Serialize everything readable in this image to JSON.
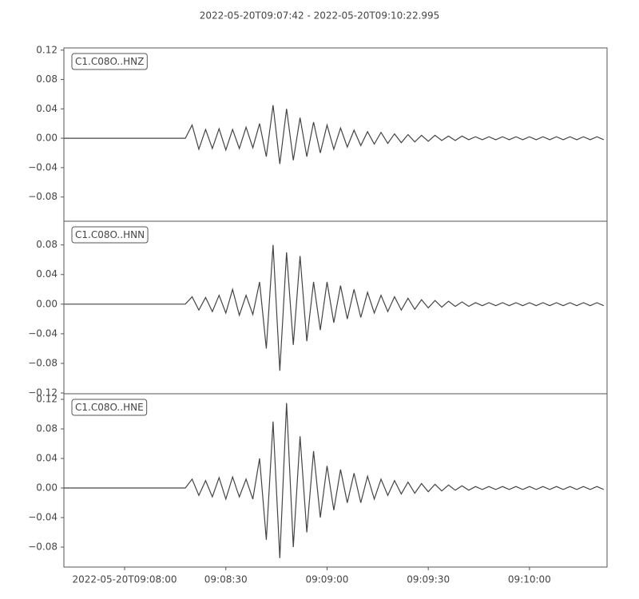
{
  "title": "2022-05-20T09:07:42  -  2022-05-20T09:10:22.995",
  "chart_data": [
    {
      "type": "line",
      "x": [
        0,
        2,
        4,
        6,
        8,
        10,
        12,
        14,
        16,
        18,
        20,
        22,
        24,
        26,
        28,
        30,
        32,
        34,
        36,
        38,
        40,
        42,
        44,
        46,
        48,
        50,
        52,
        54,
        56,
        58,
        60,
        62,
        64,
        66,
        68,
        70,
        72,
        74,
        76,
        78,
        80,
        82,
        84,
        86,
        88,
        90,
        92,
        94,
        96,
        98,
        100,
        102,
        104,
        106,
        108,
        110,
        112,
        114,
        116,
        118,
        120,
        122,
        124,
        126,
        128,
        130,
        132,
        134,
        136,
        138,
        140,
        142,
        144,
        146,
        148,
        150,
        152,
        154,
        156,
        158,
        160
      ],
      "xlim": [
        0,
        160.995
      ],
      "ylim": [
        -0.113,
        0.123
      ],
      "yticks": [
        0.12,
        0.08,
        0.04,
        {
          "value": 0,
          "label": "0.00"
        },
        {
          "value": -0.04,
          "label": "−0.04"
        },
        {
          "value": -0.08,
          "label": "−0.08"
        }
      ],
      "series": [
        {
          "name": "C1.C08O..HNZ",
          "color": "#444444",
          "values": [
            0,
            0,
            0,
            0,
            0,
            0,
            0,
            0,
            0,
            0,
            0,
            0,
            0,
            0,
            0,
            0,
            0,
            0,
            0,
            0.018,
            -0.015,
            0.012,
            -0.014,
            0.013,
            -0.016,
            0.012,
            -0.014,
            0.015,
            -0.013,
            0.02,
            -0.025,
            0.045,
            -0.035,
            0.04,
            -0.03,
            0.028,
            -0.025,
            0.022,
            -0.02,
            0.018,
            -0.015,
            0.014,
            -0.012,
            0.011,
            -0.01,
            0.009,
            -0.008,
            0.008,
            -0.007,
            0.006,
            -0.006,
            0.005,
            -0.005,
            0.004,
            -0.004,
            0.004,
            -0.003,
            0.003,
            -0.003,
            0.003,
            -0.002,
            0.002,
            -0.002,
            0.002,
            -0.002,
            0.002,
            -0.002,
            0.002,
            -0.002,
            0.002,
            -0.002,
            0.002,
            -0.002,
            0.002,
            -0.002,
            0.002,
            -0.002,
            0.002,
            -0.002,
            0.002,
            -0.002
          ]
        }
      ]
    },
    {
      "type": "line",
      "x": [
        0,
        2,
        4,
        6,
        8,
        10,
        12,
        14,
        16,
        18,
        20,
        22,
        24,
        26,
        28,
        30,
        32,
        34,
        36,
        38,
        40,
        42,
        44,
        46,
        48,
        50,
        52,
        54,
        56,
        58,
        60,
        62,
        64,
        66,
        68,
        70,
        72,
        74,
        76,
        78,
        80,
        82,
        84,
        86,
        88,
        90,
        92,
        94,
        96,
        98,
        100,
        102,
        104,
        106,
        108,
        110,
        112,
        114,
        116,
        118,
        120,
        122,
        124,
        126,
        128,
        130,
        132,
        134,
        136,
        138,
        140,
        142,
        144,
        146,
        148,
        150,
        152,
        154,
        156,
        158,
        160
      ],
      "xlim": [
        0,
        160.995
      ],
      "ylim": [
        -0.121,
        0.112
      ],
      "yticks": [
        0.08,
        0.04,
        {
          "value": 0,
          "label": "0.00"
        },
        {
          "value": -0.04,
          "label": "−0.04"
        },
        {
          "value": -0.08,
          "label": "−0.08"
        },
        {
          "value": -0.12,
          "label": "−0.12"
        }
      ],
      "series": [
        {
          "name": "C1.C08O..HNN",
          "color": "#444444",
          "values": [
            0,
            0,
            0,
            0,
            0,
            0,
            0,
            0,
            0,
            0,
            0,
            0,
            0,
            0,
            0,
            0,
            0,
            0,
            0,
            0.01,
            -0.008,
            0.009,
            -0.01,
            0.012,
            -0.012,
            0.02,
            -0.015,
            0.012,
            -0.014,
            0.03,
            -0.06,
            0.08,
            -0.09,
            0.07,
            -0.055,
            0.065,
            -0.05,
            0.03,
            -0.035,
            0.03,
            -0.025,
            0.025,
            -0.02,
            0.02,
            -0.018,
            0.016,
            -0.012,
            0.012,
            -0.01,
            0.01,
            -0.008,
            0.008,
            -0.007,
            0.006,
            -0.005,
            0.005,
            -0.004,
            0.004,
            -0.003,
            0.003,
            -0.003,
            0.002,
            -0.002,
            0.002,
            -0.002,
            0.002,
            -0.002,
            0.002,
            -0.002,
            0.002,
            -0.002,
            0.002,
            -0.002,
            0.002,
            -0.002,
            0.002,
            -0.002,
            0.002,
            -0.002,
            0.002,
            -0.002
          ]
        }
      ]
    },
    {
      "type": "line",
      "x": [
        0,
        2,
        4,
        6,
        8,
        10,
        12,
        14,
        16,
        18,
        20,
        22,
        24,
        26,
        28,
        30,
        32,
        34,
        36,
        38,
        40,
        42,
        44,
        46,
        48,
        50,
        52,
        54,
        56,
        58,
        60,
        62,
        64,
        66,
        68,
        70,
        72,
        74,
        76,
        78,
        80,
        82,
        84,
        86,
        88,
        90,
        92,
        94,
        96,
        98,
        100,
        102,
        104,
        106,
        108,
        110,
        112,
        114,
        116,
        118,
        120,
        122,
        124,
        126,
        128,
        130,
        132,
        134,
        136,
        138,
        140,
        142,
        144,
        146,
        148,
        150,
        152,
        154,
        156,
        158,
        160
      ],
      "xlim": [
        0,
        160.995
      ],
      "ylim": [
        -0.107,
        0.1276
      ],
      "yticks": [
        0.12,
        0.08,
        0.04,
        {
          "value": 0,
          "label": "0.00"
        },
        {
          "value": -0.04,
          "label": "−0.04"
        },
        {
          "value": -0.08,
          "label": "−0.08"
        }
      ],
      "xticks": [
        {
          "value": 18,
          "label": "2022-05-20T09:08:00"
        },
        {
          "value": 48,
          "label": "09:08:30"
        },
        {
          "value": 78,
          "label": "09:09:00"
        },
        {
          "value": 108,
          "label": "09:09:30"
        },
        {
          "value": 138,
          "label": "09:10:00"
        }
      ],
      "series": [
        {
          "name": "C1.C08O..HNE",
          "color": "#444444",
          "values": [
            0,
            0,
            0,
            0,
            0,
            0,
            0,
            0,
            0,
            0,
            0,
            0,
            0,
            0,
            0,
            0,
            0,
            0,
            0,
            0.012,
            -0.01,
            0.01,
            -0.012,
            0.014,
            -0.015,
            0.015,
            -0.012,
            0.012,
            -0.015,
            0.04,
            -0.07,
            0.09,
            -0.095,
            0.115,
            -0.08,
            0.07,
            -0.06,
            0.05,
            -0.04,
            0.03,
            -0.03,
            0.025,
            -0.02,
            0.02,
            -0.02,
            0.016,
            -0.015,
            0.012,
            -0.01,
            0.01,
            -0.008,
            0.008,
            -0.007,
            0.006,
            -0.005,
            0.005,
            -0.004,
            0.004,
            -0.003,
            0.003,
            -0.003,
            0.002,
            -0.002,
            0.002,
            -0.002,
            0.002,
            -0.002,
            0.002,
            -0.002,
            0.002,
            -0.002,
            0.002,
            -0.002,
            0.002,
            -0.002,
            0.002,
            -0.002,
            0.002,
            -0.002,
            0.002,
            -0.002
          ]
        }
      ]
    }
  ]
}
